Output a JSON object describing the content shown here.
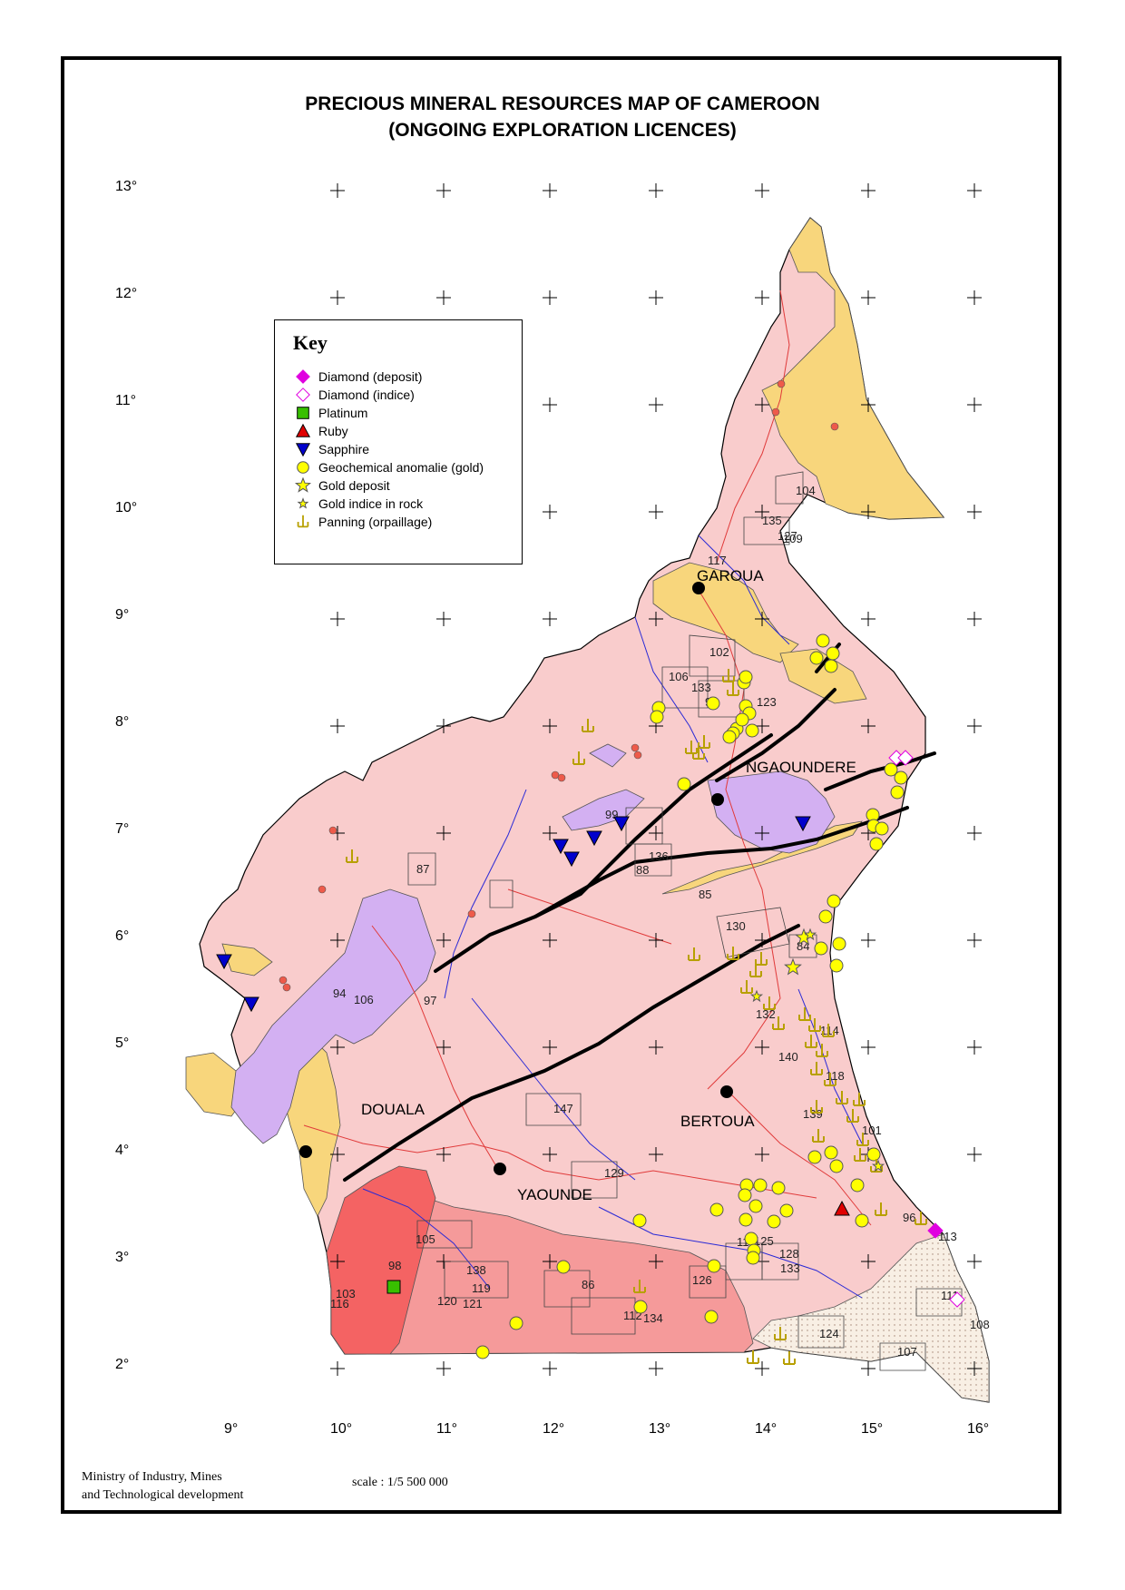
{
  "map": {
    "title_line1": "PRECIOUS MINERAL RESOURCES MAP OF CAMEROON",
    "title_line2": "(ONGOING EXPLORATION LICENCES)",
    "latitudes": [
      "13°",
      "12°",
      "11°",
      "10°",
      "9°",
      "8°",
      "7°",
      "6°",
      "5°",
      "4°",
      "3°",
      "2°"
    ],
    "longitudes": [
      "9°",
      "10°",
      "11°",
      "12°",
      "13°",
      "14°",
      "15°",
      "16°"
    ],
    "key": {
      "title": "Key",
      "items": [
        {
          "label": "Diamond (deposit)",
          "symbol": "diamond-deposit-icon"
        },
        {
          "label": "Diamond (indice)",
          "symbol": "diamond-indice-icon"
        },
        {
          "label": "Platinum",
          "symbol": "platinum-icon"
        },
        {
          "label": "Ruby",
          "symbol": "ruby-icon"
        },
        {
          "label": "Sapphire",
          "symbol": "sapphire-icon"
        },
        {
          "label": "Geochemical anomalie (gold)",
          "symbol": "gold-anomaly-icon"
        },
        {
          "label": "Gold deposit",
          "symbol": "gold-deposit-icon"
        },
        {
          "label": "Gold indice in rock",
          "symbol": "gold-indice-icon"
        },
        {
          "label": "Panning (orpaillage)",
          "symbol": "panning-icon"
        }
      ]
    },
    "cities": [
      "GAROUA",
      "NGAOUNDERE",
      "DOUALA",
      "BERTOUA",
      "YAOUNDE"
    ],
    "licence_labels": [
      "104",
      "135",
      "127",
      "109",
      "117",
      "102",
      "106",
      "133",
      "95",
      "123",
      "99",
      "136",
      "88",
      "85",
      "87",
      "97",
      "130",
      "132",
      "84",
      "94",
      "106",
      "114",
      "140",
      "118",
      "139",
      "101",
      "147",
      "129",
      "96",
      "113",
      "105",
      "98",
      "138",
      "119",
      "120",
      "121",
      "103",
      "116",
      "86",
      "112",
      "134",
      "115",
      "125",
      "128",
      "133",
      "126",
      "111",
      "108",
      "124",
      "107",
      "131"
    ],
    "colors": {
      "country_fill": "#f9cccc",
      "sediment_yellow": "#f8d67c",
      "granite_purple": "#d3b0f2",
      "red_zone": "#f46363",
      "dark_red_zone": "#ff7070",
      "pink_zone": "#f59a9a",
      "dotted_zone": "#f5ece0",
      "roads": "#e03a3a",
      "rivers": "#2a2ad6",
      "faults": "#000000",
      "diamond": "#e000e0",
      "platinum": "#38c000",
      "ruby": "#e00000",
      "sapphire": "#0000cc",
      "gold": "#ffff00"
    },
    "footer_ministry_line1": "Ministry of Industry, Mines",
    "footer_ministry_line2": "and Technological development",
    "footer_scale": "scale : 1/5 500 000"
  }
}
